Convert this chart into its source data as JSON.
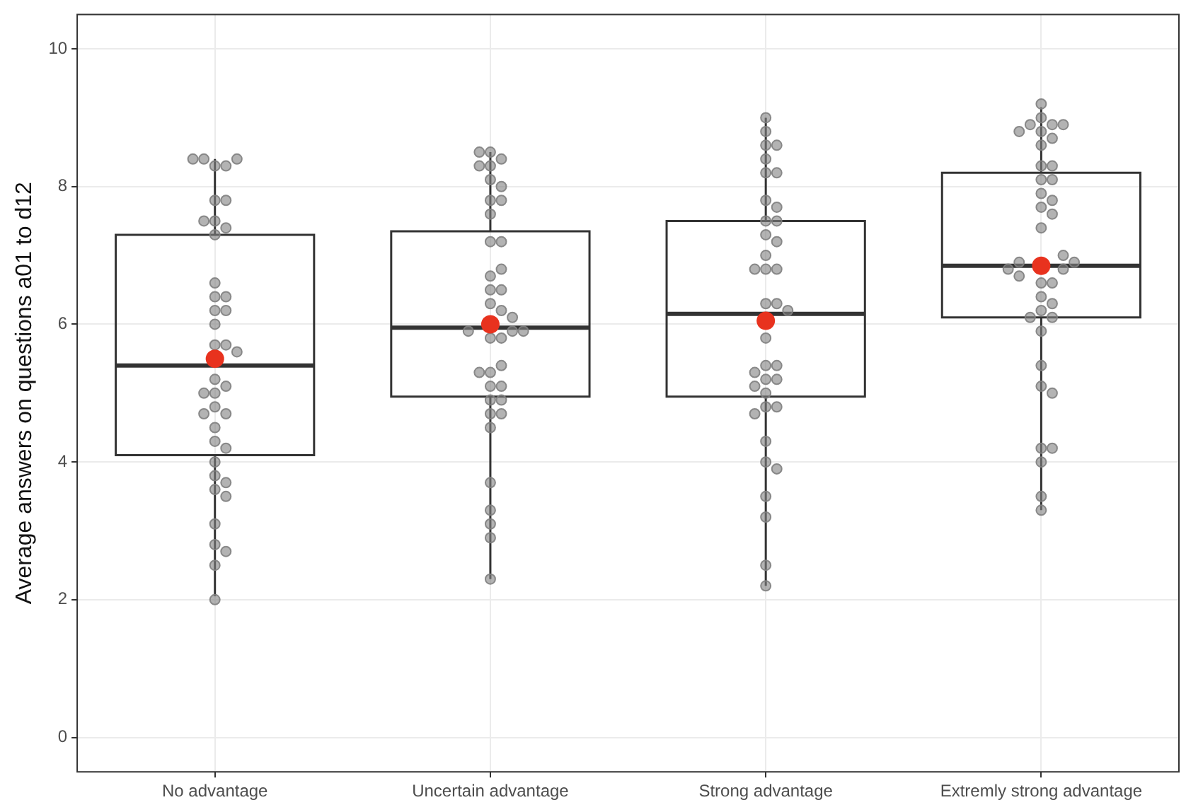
{
  "chart_data": {
    "type": "box",
    "ylabel": "Average answers on questions a01 to d12",
    "categories": [
      "No advantage",
      "Uncertain advantage",
      "Strong advantage",
      "Extremly strong advantage"
    ],
    "ylim": [
      -0.5,
      10.5
    ],
    "yticks": [
      0,
      2,
      4,
      6,
      8,
      10
    ],
    "grid": true,
    "legend": false,
    "series": [
      {
        "type": "box",
        "color": "#333333",
        "boxes": [
          {
            "low": 2.05,
            "q1": 4.1,
            "median": 5.4,
            "q3": 7.3,
            "high": 8.4,
            "mean": 5.5
          },
          {
            "low": 2.3,
            "q1": 4.95,
            "median": 5.95,
            "q3": 7.35,
            "high": 8.5,
            "mean": 6.0
          },
          {
            "low": 2.2,
            "q1": 4.95,
            "median": 6.15,
            "q3": 7.5,
            "high": 9.0,
            "mean": 6.05
          },
          {
            "low": 3.3,
            "q1": 6.1,
            "median": 6.85,
            "q3": 8.2,
            "high": 9.15,
            "mean": 6.85
          }
        ]
      },
      {
        "type": "scatter",
        "color": "#808080",
        "marker": "circle",
        "x": [
          "No advantage",
          "No advantage",
          "No advantage",
          "No advantage",
          "No advantage",
          "No advantage",
          "No advantage",
          "No advantage",
          "No advantage",
          "No advantage",
          "No advantage",
          "No advantage",
          "No advantage",
          "No advantage",
          "No advantage",
          "No advantage",
          "No advantage",
          "No advantage",
          "No advantage",
          "No advantage",
          "No advantage",
          "No advantage",
          "No advantage",
          "No advantage",
          "No advantage",
          "No advantage",
          "No advantage",
          "No advantage",
          "No advantage",
          "No advantage",
          "No advantage",
          "No advantage",
          "No advantage",
          "No advantage",
          "No advantage",
          "No advantage",
          "No advantage",
          "No advantage",
          "No advantage",
          "No advantage"
        ],
        "values": [
          8.3,
          8.3,
          8.4,
          8.4,
          8.4,
          7.8,
          7.8,
          7.5,
          7.4,
          7.5,
          7.3,
          6.6,
          6.4,
          6.4,
          6.2,
          6.2,
          6.0,
          5.7,
          5.7,
          5.6,
          5.2,
          5.1,
          5.0,
          5.0,
          4.8,
          4.7,
          4.7,
          4.5,
          4.3,
          4.2,
          4.0,
          3.8,
          3.7,
          3.6,
          3.5,
          3.1,
          2.8,
          2.7,
          2.5,
          2.0
        ]
      },
      {
        "type": "scatter",
        "color": "#808080",
        "marker": "circle",
        "x": [
          "Uncertain advantage",
          "Uncertain advantage",
          "Uncertain advantage",
          "Uncertain advantage",
          "Uncertain advantage",
          "Uncertain advantage",
          "Uncertain advantage",
          "Uncertain advantage",
          "Uncertain advantage",
          "Uncertain advantage",
          "Uncertain advantage",
          "Uncertain advantage",
          "Uncertain advantage",
          "Uncertain advantage",
          "Uncertain advantage",
          "Uncertain advantage",
          "Uncertain advantage",
          "Uncertain advantage",
          "Uncertain advantage",
          "Uncertain advantage",
          "Uncertain advantage",
          "Uncertain advantage",
          "Uncertain advantage",
          "Uncertain advantage",
          "Uncertain advantage",
          "Uncertain advantage",
          "Uncertain advantage",
          "Uncertain advantage",
          "Uncertain advantage",
          "Uncertain advantage",
          "Uncertain advantage",
          "Uncertain advantage",
          "Uncertain advantage",
          "Uncertain advantage",
          "Uncertain advantage",
          "Uncertain advantage",
          "Uncertain advantage",
          "Uncertain advantage",
          "Uncertain advantage"
        ],
        "values": [
          8.5,
          8.4,
          8.3,
          8.3,
          8.5,
          8.1,
          8.0,
          7.8,
          7.8,
          7.6,
          7.2,
          7.2,
          6.7,
          6.8,
          6.5,
          6.3,
          6.5,
          6.2,
          6.1,
          5.9,
          5.9,
          5.9,
          5.8,
          5.8,
          5.3,
          5.4,
          5.1,
          5.3,
          5.1,
          4.9,
          4.9,
          4.7,
          4.7,
          4.5,
          3.7,
          3.3,
          3.1,
          2.9,
          2.3
        ]
      },
      {
        "type": "scatter",
        "color": "#808080",
        "marker": "circle",
        "x": [
          "Strong advantage",
          "Strong advantage",
          "Strong advantage",
          "Strong advantage",
          "Strong advantage",
          "Strong advantage",
          "Strong advantage",
          "Strong advantage",
          "Strong advantage",
          "Strong advantage",
          "Strong advantage",
          "Strong advantage",
          "Strong advantage",
          "Strong advantage",
          "Strong advantage",
          "Strong advantage",
          "Strong advantage",
          "Strong advantage",
          "Strong advantage",
          "Strong advantage",
          "Strong advantage",
          "Strong advantage",
          "Strong advantage",
          "Strong advantage",
          "Strong advantage",
          "Strong advantage",
          "Strong advantage",
          "Strong advantage",
          "Strong advantage",
          "Strong advantage",
          "Strong advantage",
          "Strong advantage",
          "Strong advantage",
          "Strong advantage",
          "Strong advantage",
          "Strong advantage",
          "Strong advantage",
          "Strong advantage"
        ],
        "values": [
          9.0,
          8.8,
          8.6,
          8.6,
          8.4,
          8.2,
          8.2,
          7.8,
          7.7,
          7.5,
          7.5,
          7.3,
          7.2,
          7.0,
          6.8,
          6.8,
          6.8,
          6.2,
          6.3,
          6.3,
          5.8,
          5.4,
          5.4,
          5.3,
          5.2,
          5.2,
          5.1,
          5.0,
          4.8,
          4.8,
          4.7,
          4.3,
          4.0,
          3.9,
          3.5,
          3.2,
          2.5,
          2.2
        ]
      },
      {
        "type": "scatter",
        "color": "#808080",
        "marker": "circle",
        "x": [
          "Extremly strong advantage",
          "Extremly strong advantage",
          "Extremly strong advantage",
          "Extremly strong advantage",
          "Extremly strong advantage",
          "Extremly strong advantage",
          "Extremly strong advantage",
          "Extremly strong advantage",
          "Extremly strong advantage",
          "Extremly strong advantage",
          "Extremly strong advantage",
          "Extremly strong advantage",
          "Extremly strong advantage",
          "Extremly strong advantage",
          "Extremly strong advantage",
          "Extremly strong advantage",
          "Extremly strong advantage",
          "Extremly strong advantage",
          "Extremly strong advantage",
          "Extremly strong advantage",
          "Extremly strong advantage",
          "Extremly strong advantage",
          "Extremly strong advantage",
          "Extremly strong advantage",
          "Extremly strong advantage",
          "Extremly strong advantage",
          "Extremly strong advantage",
          "Extremly strong advantage",
          "Extremly strong advantage",
          "Extremly strong advantage",
          "Extremly strong advantage",
          "Extremly strong advantage",
          "Extremly strong advantage",
          "Extremly strong advantage",
          "Extremly strong advantage",
          "Extremly strong advantage",
          "Extremly strong advantage",
          "Extremly strong advantage",
          "Extremly strong advantage",
          "Extremly strong advantage"
        ],
        "values": [
          9.2,
          9.0,
          8.9,
          8.9,
          8.8,
          8.9,
          8.8,
          8.7,
          8.6,
          8.3,
          8.3,
          8.1,
          8.1,
          7.9,
          7.8,
          7.7,
          7.6,
          7.4,
          7.0,
          6.9,
          6.9,
          6.8,
          6.8,
          6.7,
          6.6,
          6.6,
          6.4,
          6.3,
          6.2,
          6.1,
          6.1,
          5.9,
          5.4,
          5.1,
          5.0,
          4.2,
          4.2,
          4.0,
          3.5,
          3.3
        ]
      }
    ]
  }
}
